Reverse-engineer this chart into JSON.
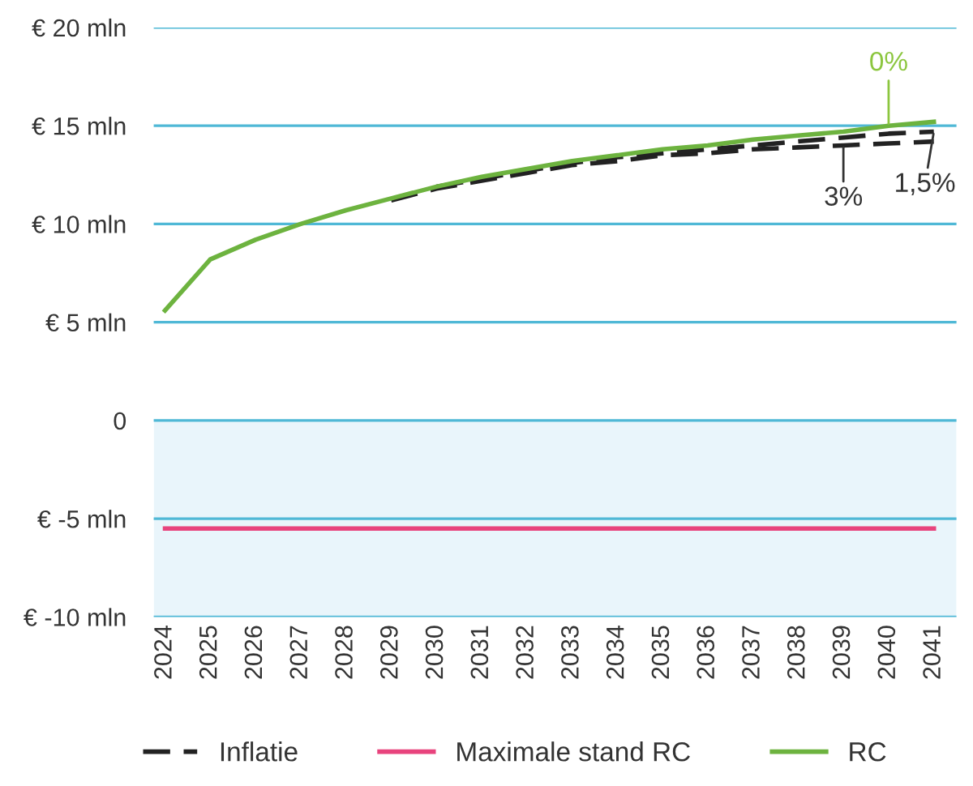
{
  "chart_data": {
    "type": "line",
    "categories": [
      "2024",
      "2025",
      "2026",
      "2027",
      "2028",
      "2029",
      "2030",
      "2031",
      "2032",
      "2033",
      "2034",
      "2035",
      "2036",
      "2037",
      "2038",
      "2039",
      "2040",
      "2041"
    ],
    "series": [
      {
        "name": "Inflatie",
        "color": "#222222",
        "line_style": "dashed",
        "values": [
          null,
          null,
          null,
          null,
          null,
          11.2,
          11.8,
          12.2,
          12.6,
          13.0,
          13.2,
          13.5,
          13.6,
          13.8,
          13.9,
          14.0,
          14.1,
          14.2
        ]
      },
      {
        "color": "#222222",
        "line_style": "dashed",
        "values": [
          null,
          null,
          null,
          null,
          null,
          null,
          11.9,
          12.3,
          12.7,
          13.1,
          13.4,
          13.6,
          13.8,
          14.0,
          14.2,
          14.4,
          14.6,
          14.7
        ]
      },
      {
        "name": "Maximale stand RC",
        "color": "#e8437d",
        "line_style": "solid",
        "values": [
          -5.5,
          -5.5,
          -5.5,
          -5.5,
          -5.5,
          -5.5,
          -5.5,
          -5.5,
          -5.5,
          -5.5,
          -5.5,
          -5.5,
          -5.5,
          -5.5,
          -5.5,
          -5.5,
          -5.5,
          -5.5
        ]
      },
      {
        "name": "RC",
        "color": "#6db33f",
        "line_style": "solid",
        "values": [
          5.6,
          8.2,
          9.2,
          10.0,
          10.7,
          11.3,
          11.9,
          12.4,
          12.8,
          13.2,
          13.5,
          13.8,
          14.0,
          14.3,
          14.5,
          14.7,
          15.0,
          15.2
        ]
      }
    ],
    "ylim": [
      -10,
      20
    ],
    "yticks": [
      {
        "value": -10,
        "label": "€ -10 mln"
      },
      {
        "value": -5,
        "label": "€ -5 mln"
      },
      {
        "value": 0,
        "label": "0"
      },
      {
        "value": 5,
        "label": "€ 5 mln"
      },
      {
        "value": 10,
        "label": "€ 10 mln"
      },
      {
        "value": 15,
        "label": "€ 15 mln"
      },
      {
        "value": 20,
        "label": "€ 20 mln"
      }
    ],
    "bands": [
      {
        "axis": "y",
        "from": -10,
        "to": 0,
        "color": "#e9f5fb"
      }
    ],
    "annotations": [
      {
        "text": "0%",
        "x": "2040",
        "y": 15.0
      },
      {
        "text": "3%",
        "x": "2039",
        "y": 14.0
      },
      {
        "text": "1,5%",
        "x": "2041",
        "y": 14.7
      }
    ],
    "grid": "y",
    "legend": "bottom",
    "marker": "none"
  }
}
